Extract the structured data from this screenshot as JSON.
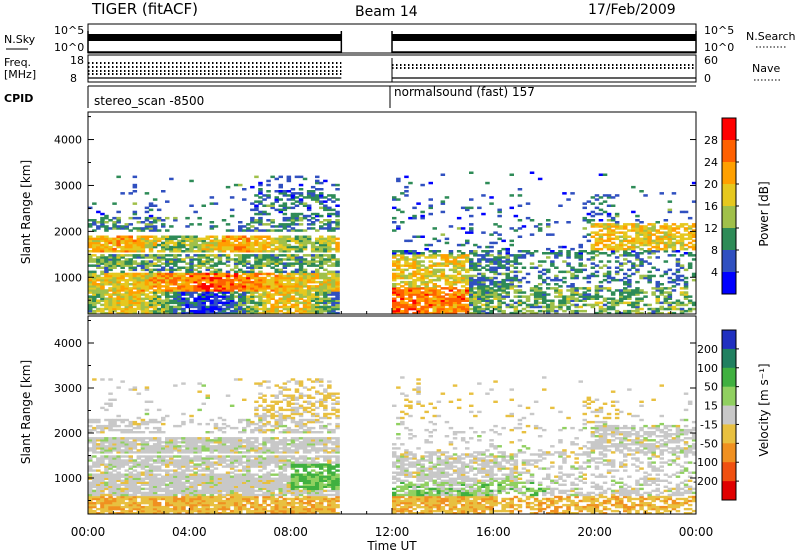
{
  "header": {
    "station": "TIGER (fitACF)",
    "beam": "Beam 14",
    "date": "17/Feb/2009"
  },
  "noise_panel": {
    "left_label": "N.Sky",
    "right_label": "N.Search",
    "left_ticks": [
      "10^5",
      "10^0"
    ],
    "right_ticks": [
      "10^5",
      "10^0"
    ]
  },
  "freq_panel": {
    "left_label": [
      "Freq.",
      "[MHz]"
    ],
    "right_label": "Nave",
    "left_ticks": [
      "18",
      "8"
    ],
    "right_ticks": [
      "60",
      "0"
    ]
  },
  "cpid": {
    "label": "CPID",
    "segments": [
      "stereo_scan -8500",
      "normalsound (fast) 157"
    ]
  },
  "power_colorbar": {
    "label": "Power [dB]",
    "ticks": [
      "28",
      "24",
      "20",
      "16",
      "12",
      "8",
      "4"
    ],
    "colors": [
      "#ff0000",
      "#ff6000",
      "#ffa000",
      "#e6c81e",
      "#a0c04a",
      "#2e8b57",
      "#3050c0",
      "#0000ff"
    ]
  },
  "velocity_colorbar": {
    "label": "Velocity [m s⁻¹]",
    "ticks": [
      "200",
      "100",
      "50",
      "15",
      "-15",
      "-50",
      "-100",
      "-200"
    ],
    "colors": [
      "#2030c0",
      "#208060",
      "#40b040",
      "#90d060",
      "#c8c8c8",
      "#e8c040",
      "#f09020",
      "#f05010",
      "#e00000"
    ]
  },
  "chart_data": [
    {
      "type": "heatmap",
      "title": "",
      "ylabel": "Slant Range [km]",
      "yticks": [
        "4000",
        "3000",
        "2000",
        "1000"
      ],
      "ylim": [
        200,
        4600
      ],
      "xlim": [
        0,
        24
      ],
      "xticks": [
        "00:00",
        "04:00",
        "08:00",
        "12:00",
        "16:00",
        "20:00",
        "00:00"
      ],
      "data_gap_hours": [
        10,
        12
      ],
      "colorbar": "Power [dB]"
    },
    {
      "type": "heatmap",
      "title": "",
      "xlabel": "Time UT",
      "ylabel": "Slant Range [km]",
      "yticks": [
        "4000",
        "3000",
        "2000",
        "1000"
      ],
      "ylim": [
        200,
        4600
      ],
      "xlim": [
        0,
        24
      ],
      "xticks": [
        "00:00",
        "04:00",
        "08:00",
        "12:00",
        "16:00",
        "20:00",
        "00:00"
      ],
      "data_gap_hours": [
        10,
        12
      ],
      "colorbar": "Velocity [m s⁻¹]"
    }
  ]
}
